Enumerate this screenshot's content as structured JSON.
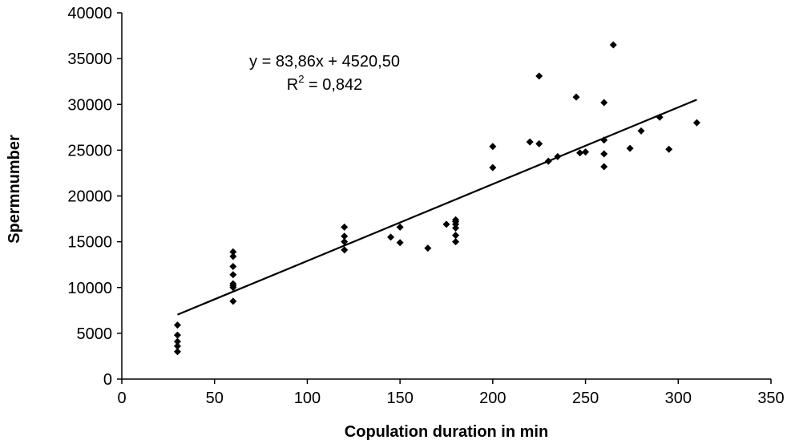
{
  "chart_data": {
    "type": "scatter",
    "title": "",
    "xlabel": "Copulation duration in min",
    "ylabel": "Spermnumber",
    "xlim": [
      0,
      350
    ],
    "ylim": [
      0,
      40000
    ],
    "x_ticks": [
      "0",
      "50",
      "100",
      "150",
      "200",
      "250",
      "300",
      "350"
    ],
    "y_ticks": [
      "0",
      "5000",
      "10000",
      "15000",
      "20000",
      "25000",
      "30000",
      "35000",
      "40000"
    ],
    "grid": false,
    "legend": "none",
    "marker": "diamond",
    "marker_color": "#000000",
    "annotation": {
      "equation": "y = 83,86x + 4520,50",
      "r2_prefix": "R",
      "r2_sup": "2",
      "r2_value": " = 0,842"
    },
    "trendline": {
      "slope": 83.86,
      "intercept": 4520.5,
      "x_range": [
        30,
        310
      ]
    },
    "points": [
      [
        30,
        3000
      ],
      [
        30,
        3600
      ],
      [
        30,
        4100
      ],
      [
        30,
        4800
      ],
      [
        30,
        5900
      ],
      [
        60,
        8500
      ],
      [
        60,
        10000
      ],
      [
        60,
        10200
      ],
      [
        60,
        10400
      ],
      [
        60,
        11400
      ],
      [
        60,
        12300
      ],
      [
        60,
        13400
      ],
      [
        60,
        13900
      ],
      [
        120,
        14100
      ],
      [
        120,
        15000
      ],
      [
        120,
        15600
      ],
      [
        120,
        16600
      ],
      [
        145,
        15500
      ],
      [
        150,
        14900
      ],
      [
        150,
        16600
      ],
      [
        165,
        14300
      ],
      [
        175,
        16900
      ],
      [
        180,
        15000
      ],
      [
        180,
        15700
      ],
      [
        180,
        16500
      ],
      [
        180,
        16900
      ],
      [
        180,
        17200
      ],
      [
        180,
        17400
      ],
      [
        200,
        23100
      ],
      [
        200,
        25400
      ],
      [
        220,
        25900
      ],
      [
        225,
        25700
      ],
      [
        225,
        33100
      ],
      [
        230,
        23800
      ],
      [
        235,
        24300
      ],
      [
        245,
        30800
      ],
      [
        247,
        24700
      ],
      [
        250,
        24800
      ],
      [
        260,
        23200
      ],
      [
        260,
        24600
      ],
      [
        260,
        26100
      ],
      [
        260,
        30200
      ],
      [
        265,
        36500
      ],
      [
        274,
        25200
      ],
      [
        280,
        27100
      ],
      [
        290,
        28600
      ],
      [
        295,
        25100
      ],
      [
        310,
        28000
      ]
    ]
  }
}
